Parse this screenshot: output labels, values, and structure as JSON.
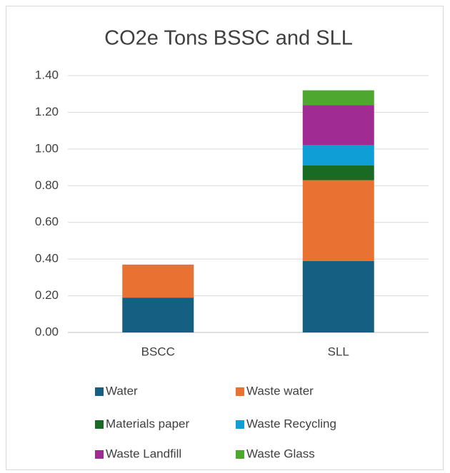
{
  "chart_data": {
    "type": "stacked_bar",
    "title": "CO2e Tons BSSC and SLL",
    "categories": [
      "BSCC",
      "SLL"
    ],
    "series": [
      {
        "name": "Water",
        "color": "#156082",
        "values": [
          0.19,
          0.39
        ]
      },
      {
        "name": "Waste water",
        "color": "#e97132",
        "values": [
          0.18,
          0.44
        ]
      },
      {
        "name": "Materials paper",
        "color": "#196b24",
        "values": [
          0,
          0.08
        ]
      },
      {
        "name": "Waste Recycling",
        "color": "#0f9ed5",
        "values": [
          0,
          0.11
        ]
      },
      {
        "name": "Waste Landfill",
        "color": "#a02b93",
        "values": [
          0,
          0.22
        ]
      },
      {
        "name": "Waste  Glass",
        "color": "#4ea72e",
        "values": [
          0,
          0.08
        ]
      }
    ],
    "ylim": [
      0,
      1.4
    ],
    "yticks": [
      {
        "value": 0,
        "label": "0.00"
      },
      {
        "value": 0.2,
        "label": "0.20"
      },
      {
        "value": 0.4,
        "label": "0.40"
      },
      {
        "value": 0.6,
        "label": "0.60"
      },
      {
        "value": 0.8,
        "label": "0.80"
      },
      {
        "value": 1.0,
        "label": "1.00"
      },
      {
        "value": 1.2,
        "label": "1.20"
      },
      {
        "value": 1.4,
        "label": "1.40"
      }
    ],
    "grid": true,
    "legend": "bottom"
  }
}
